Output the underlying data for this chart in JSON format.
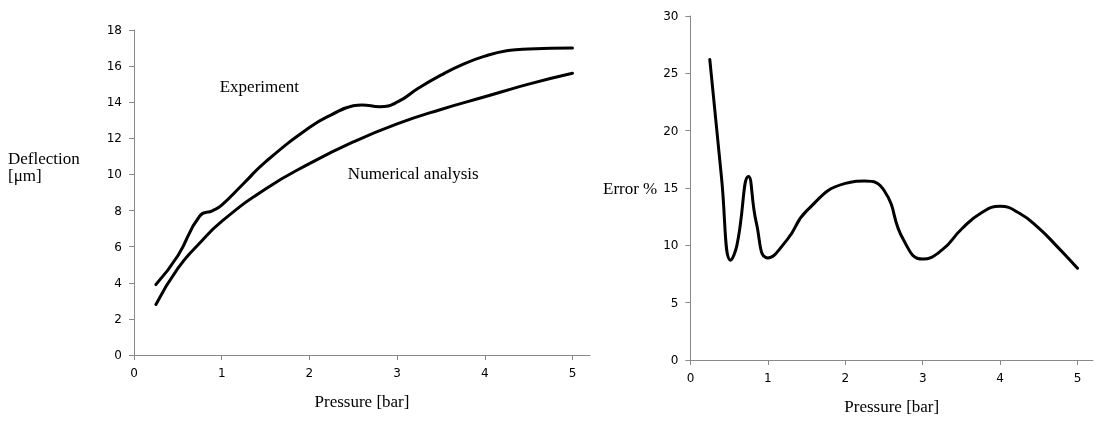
{
  "chart_data": [
    {
      "type": "line",
      "xlabel": "Pressure [bar]",
      "ylabel": "Deflection [μm]",
      "xlim": [
        0,
        5.2
      ],
      "xticks": [
        0,
        1,
        2,
        3,
        4,
        5
      ],
      "ylim": [
        0,
        18
      ],
      "yticks": [
        0,
        2,
        4,
        6,
        8,
        10,
        12,
        14,
        16,
        18
      ],
      "grid": false,
      "legend": false,
      "marker": "none",
      "line_style": "solid",
      "series": [
        {
          "name": "Experiment",
          "color": "#000000",
          "x": [
            0.25,
            0.5,
            0.75,
            0.9,
            1,
            1.25,
            1.5,
            2,
            2.25,
            2.5,
            2.6,
            2.8,
            3,
            3.25,
            3.5,
            3.75,
            4,
            4.25,
            4.5,
            5
          ],
          "values": [
            3.9,
            5.5,
            7.7,
            8.0,
            8.3,
            9.5,
            10.7,
            12.6,
            13.3,
            13.8,
            13.85,
            13.75,
            14.0,
            14.8,
            15.5,
            16.1,
            16.55,
            16.85,
            16.95,
            17.0
          ]
        },
        {
          "name": "Numerical analysis",
          "color": "#000000",
          "x": [
            0.25,
            0.5,
            0.75,
            1,
            1.5,
            2,
            2.5,
            3,
            3.5,
            4,
            4.5,
            5
          ],
          "values": [
            2.8,
            4.8,
            6.2,
            7.4,
            9.2,
            10.6,
            11.8,
            12.8,
            13.6,
            14.3,
            15.0,
            15.6
          ]
        }
      ]
    },
    {
      "type": "line",
      "xlabel": "Pressure [bar]",
      "ylabel": "Error %",
      "xlim": [
        0,
        5.2
      ],
      "xticks": [
        0,
        1,
        2,
        3,
        4,
        5
      ],
      "ylim": [
        0,
        30
      ],
      "yticks": [
        0,
        5,
        10,
        15,
        20,
        25,
        30
      ],
      "grid": false,
      "legend": false,
      "marker": "none",
      "line_style": "solid",
      "series": [
        {
          "color": "#000000",
          "x": [
            0.25,
            0.4,
            0.52,
            0.6,
            0.75,
            0.85,
            1,
            1.25,
            1.5,
            2,
            2.25,
            2.5,
            2.75,
            3,
            3.25,
            3.5,
            3.75,
            4,
            4.25,
            4.5,
            4.75,
            5
          ],
          "values": [
            26.2,
            16,
            8.7,
            10,
            16,
            12,
            8.9,
            10.5,
            13,
            15.4,
            15.6,
            14.8,
            10.5,
            8.8,
            9.6,
            11.4,
            12.8,
            13.4,
            12.8,
            11.5,
            9.8,
            8.0
          ]
        }
      ]
    }
  ]
}
